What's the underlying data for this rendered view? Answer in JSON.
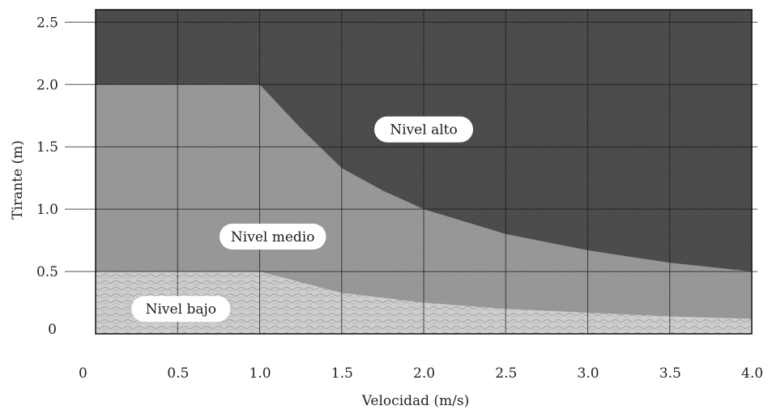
{
  "chart_data": {
    "type": "area",
    "xlabel": "Velocidad (m/s)",
    "ylabel": "Tirante (m)",
    "xlim": [
      0,
      4.0
    ],
    "ylim": [
      0,
      2.6
    ],
    "grid": true,
    "xticks": [
      "0",
      "0.5",
      "1.0",
      "1.5",
      "2.0",
      "2.5",
      "3.0",
      "3.5",
      "4.0"
    ],
    "xtick_values": [
      0,
      0.5,
      1.0,
      1.5,
      2.0,
      2.5,
      3.0,
      3.5,
      4.0
    ],
    "yticks": [
      "0",
      "0.5",
      "1.0",
      "1.5",
      "2.0",
      "2.5"
    ],
    "ytick_values": [
      0,
      0.5,
      1.0,
      1.5,
      2.0,
      2.5
    ],
    "regions": [
      {
        "label": "Nivel bajo",
        "color": "#cfcfcf",
        "label_at": [
          0.52,
          0.2
        ],
        "upper_boundary": {
          "x": [
            0,
            1.0,
            1.5,
            2.0,
            2.5,
            3.0,
            3.5,
            4.0
          ],
          "y": [
            0.5,
            0.5,
            0.33,
            0.25,
            0.2,
            0.17,
            0.14,
            0.12
          ]
        }
      },
      {
        "label": "Nivel medio",
        "color": "#9d9d9d",
        "label_at": [
          1.08,
          0.78
        ],
        "upper_boundary": {
          "x": [
            0,
            1.0,
            1.25,
            1.5,
            1.75,
            2.0,
            2.5,
            3.0,
            3.5,
            4.0
          ],
          "y": [
            2.0,
            2.0,
            1.65,
            1.33,
            1.15,
            1.0,
            0.8,
            0.67,
            0.57,
            0.5
          ]
        }
      },
      {
        "label": "Nivel alto",
        "color": "#4f4f4f",
        "label_at": [
          2.0,
          1.64
        ],
        "upper_boundary": {
          "x": [
            0,
            4.0
          ],
          "y": [
            2.6,
            2.6
          ]
        }
      }
    ]
  }
}
